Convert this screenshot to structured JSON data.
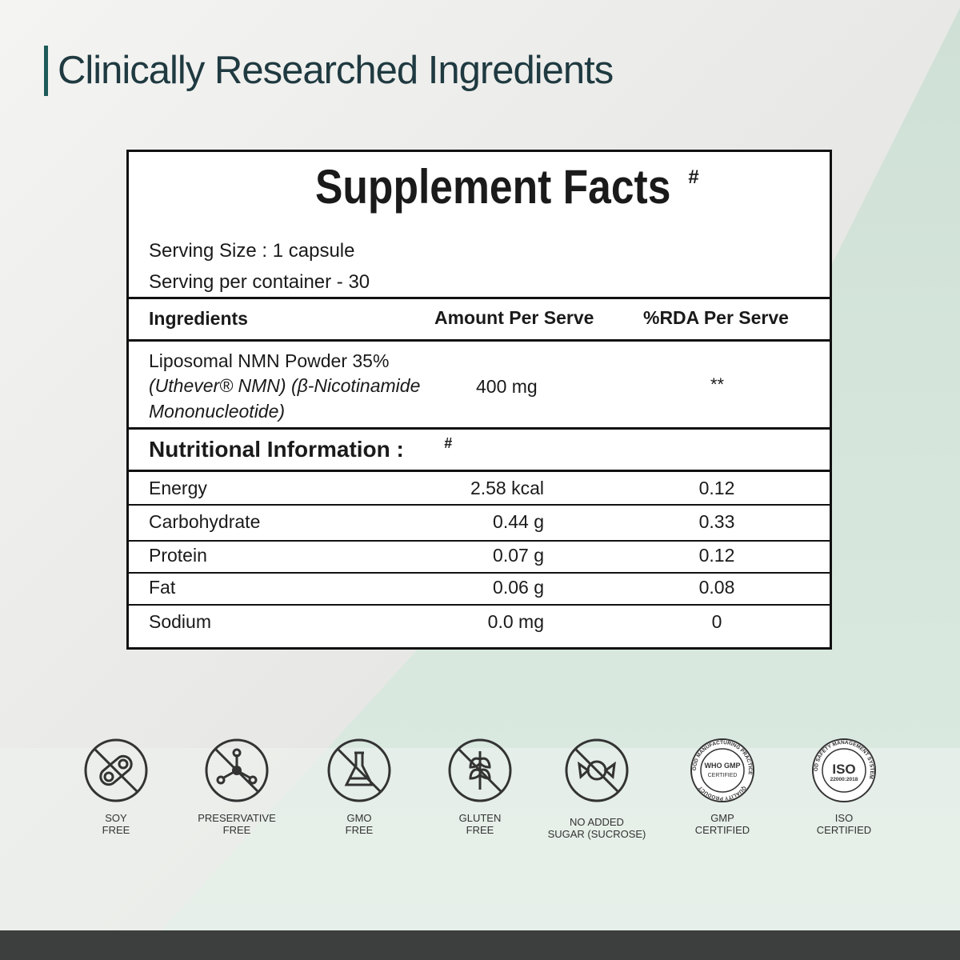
{
  "heading": "Clinically Researched Ingredients",
  "facts": {
    "title": "Supplement Facts",
    "title_mark": "#",
    "serving_size": "Serving Size : 1 capsule",
    "servings_per_container": "Serving per container - 30",
    "columns": [
      "Ingredients",
      "Amount Per Serve",
      "%RDA Per Serve"
    ],
    "ingredients": [
      {
        "name_lines": [
          "Liposomal NMN Powder 35%",
          "(Uthever® NMN) (β-Nicotinamide",
          "Mononucleotide)"
        ],
        "amount": "400 mg",
        "rda": "**"
      }
    ],
    "nutrition_title": "Nutritional Information :",
    "nutrition_mark": "#",
    "nutrition": [
      [
        "Energy",
        "2.58 kcal",
        "0.12"
      ],
      [
        "Carbohydrate",
        "0.44 g",
        "0.33"
      ],
      [
        "Protein",
        "0.07 g",
        "0.12"
      ],
      [
        "Fat",
        "0.06 g",
        "0.08"
      ],
      [
        "Sodium",
        "0.0 mg",
        "0"
      ]
    ]
  },
  "badges": [
    {
      "lines": [
        "SOY",
        "FREE"
      ]
    },
    {
      "lines": [
        "PRESERVATIVE",
        "FREE"
      ]
    },
    {
      "lines": [
        "GMO",
        "FREE"
      ]
    },
    {
      "lines": [
        "GLUTEN",
        "FREE"
      ]
    },
    {
      "lines": [
        "NO ADDED",
        "SUGAR (SUCROSE)"
      ]
    },
    {
      "lines": [
        "GMP",
        "CERTIFIED"
      ],
      "seal": [
        "GOOD MANUFACTURING PRACTICE",
        "WHO GMP",
        "CERTIFIED",
        "QUALITY PRODUCT"
      ]
    },
    {
      "lines": [
        "ISO",
        "CERTIFIED"
      ],
      "seal": [
        "FOOD SAFETY MANAGEMENT SYSTEM",
        "ISO",
        "22000:2018"
      ]
    }
  ]
}
